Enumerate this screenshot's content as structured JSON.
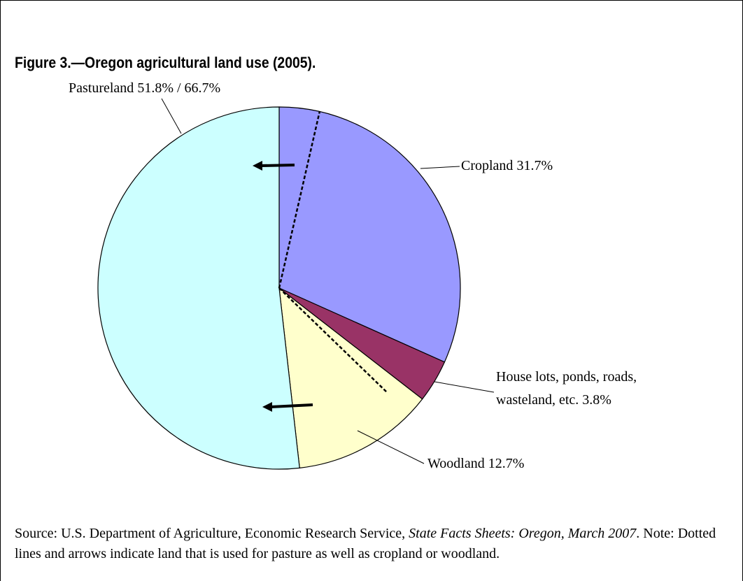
{
  "chart_data": {
    "type": "pie",
    "title": "Figure 3.—Oregon agricultural land use (2005).",
    "categories": [
      "Cropland",
      "House lots, ponds, roads, wasteland, etc.",
      "Woodland",
      "Pastureland"
    ],
    "values": [
      31.7,
      3.8,
      12.7,
      51.8
    ],
    "value_labels": [
      "31.7%",
      "3.8%",
      "12.7%",
      "51.8% / 66.7%"
    ],
    "colors": [
      "#9999ff",
      "#993366",
      "#ffffcc",
      "#ccffff"
    ],
    "source": [
      "Source: U.S. Department of Agriculture, Economic Research Service, ",
      "State Facts Sheets: Oregon, March 2007",
      ". Note: Dotted lines and arrows indicate land that is used for pasture as well as cropland or woodland."
    ]
  }
}
